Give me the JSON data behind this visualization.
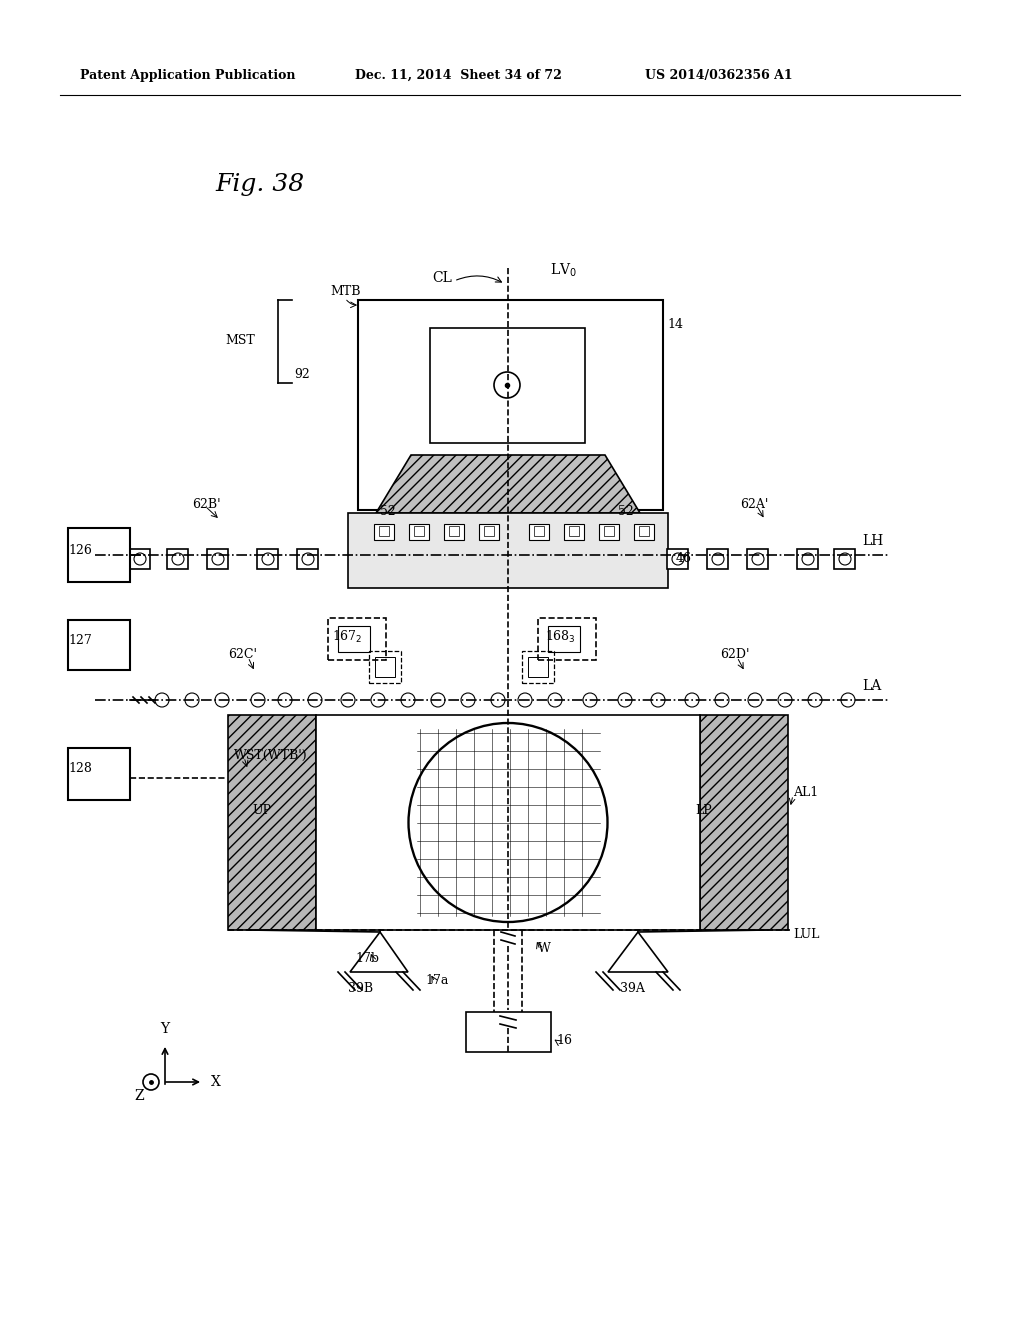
{
  "title": "Fig. 38",
  "header_left": "Patent Application Publication",
  "header_mid": "Dec. 11, 2014  Sheet 34 of 72",
  "header_right": "US 2014/0362356 A1",
  "bg_color": "#ffffff",
  "line_color": "#000000",
  "gray_fill": "#b0b0b0",
  "hatch_fill": "#d0d0d0"
}
